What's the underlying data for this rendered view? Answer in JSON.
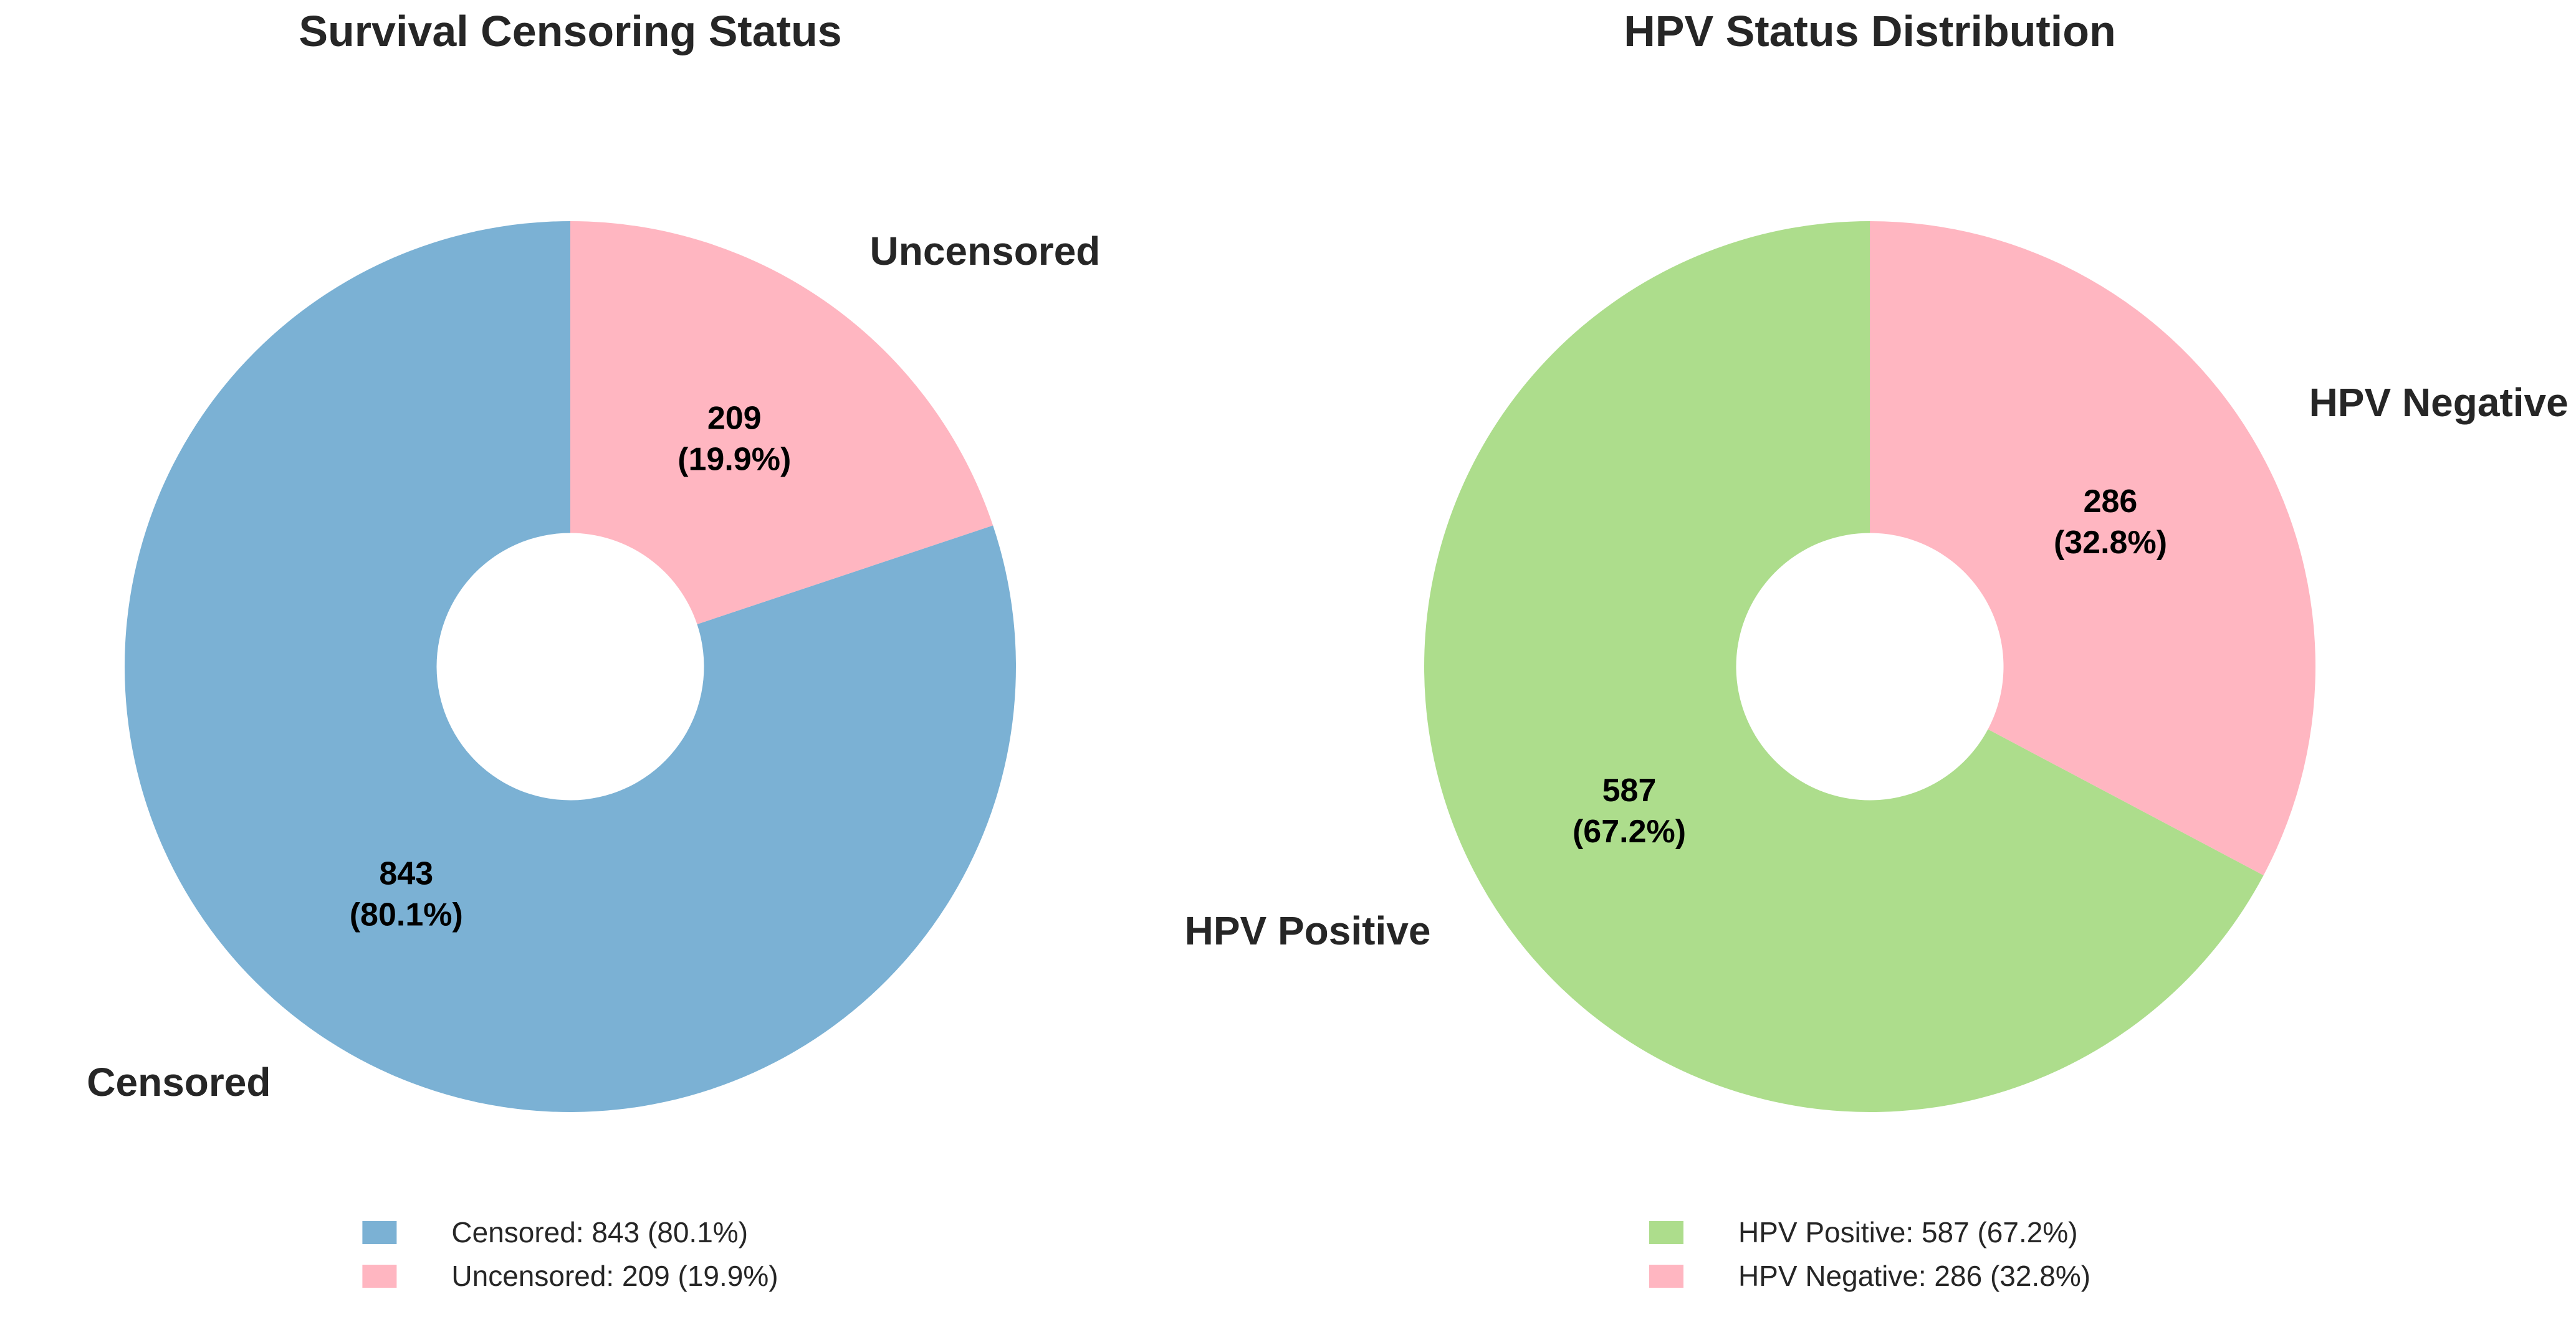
{
  "figure": {
    "background": "#ffffff",
    "text_color": "#262626"
  },
  "chart_data": [
    {
      "type": "pie",
      "subtype": "donut",
      "title": "Survival Censoring Status",
      "categories": [
        "Censored",
        "Uncensored"
      ],
      "values": [
        843,
        209
      ],
      "pcts": [
        80.1,
        19.9
      ],
      "colors": [
        "#7bb1d4",
        "#ffb6c1"
      ],
      "slice_value_labels": [
        "843\n(80.1%)",
        "209\n(19.9%)"
      ],
      "legend": [
        {
          "text": "Censored: 843 (80.1%)",
          "color": "#7bb1d4"
        },
        {
          "text": "Uncensored: 209 (19.9%)",
          "color": "#ffb6c1"
        }
      ],
      "legend_position": "bottom-center",
      "start_angle": 90,
      "counterclock": true,
      "donut_hole_ratio": 0.3
    },
    {
      "type": "pie",
      "subtype": "donut",
      "title": "HPV Status Distribution",
      "categories": [
        "HPV Positive",
        "HPV Negative"
      ],
      "values": [
        587,
        286
      ],
      "pcts": [
        67.2,
        32.8
      ],
      "colors": [
        "#addd8c",
        "#ffb6c1"
      ],
      "slice_value_labels": [
        "587\n(67.2%)",
        "286\n(32.8%)"
      ],
      "legend": [
        {
          "text": "HPV Positive: 587 (67.2%)",
          "color": "#addd8c"
        },
        {
          "text": "HPV Negative: 286 (32.8%)",
          "color": "#ffb6c1"
        }
      ],
      "legend_position": "bottom-center",
      "start_angle": 90,
      "counterclock": true,
      "donut_hole_ratio": 0.3
    }
  ]
}
